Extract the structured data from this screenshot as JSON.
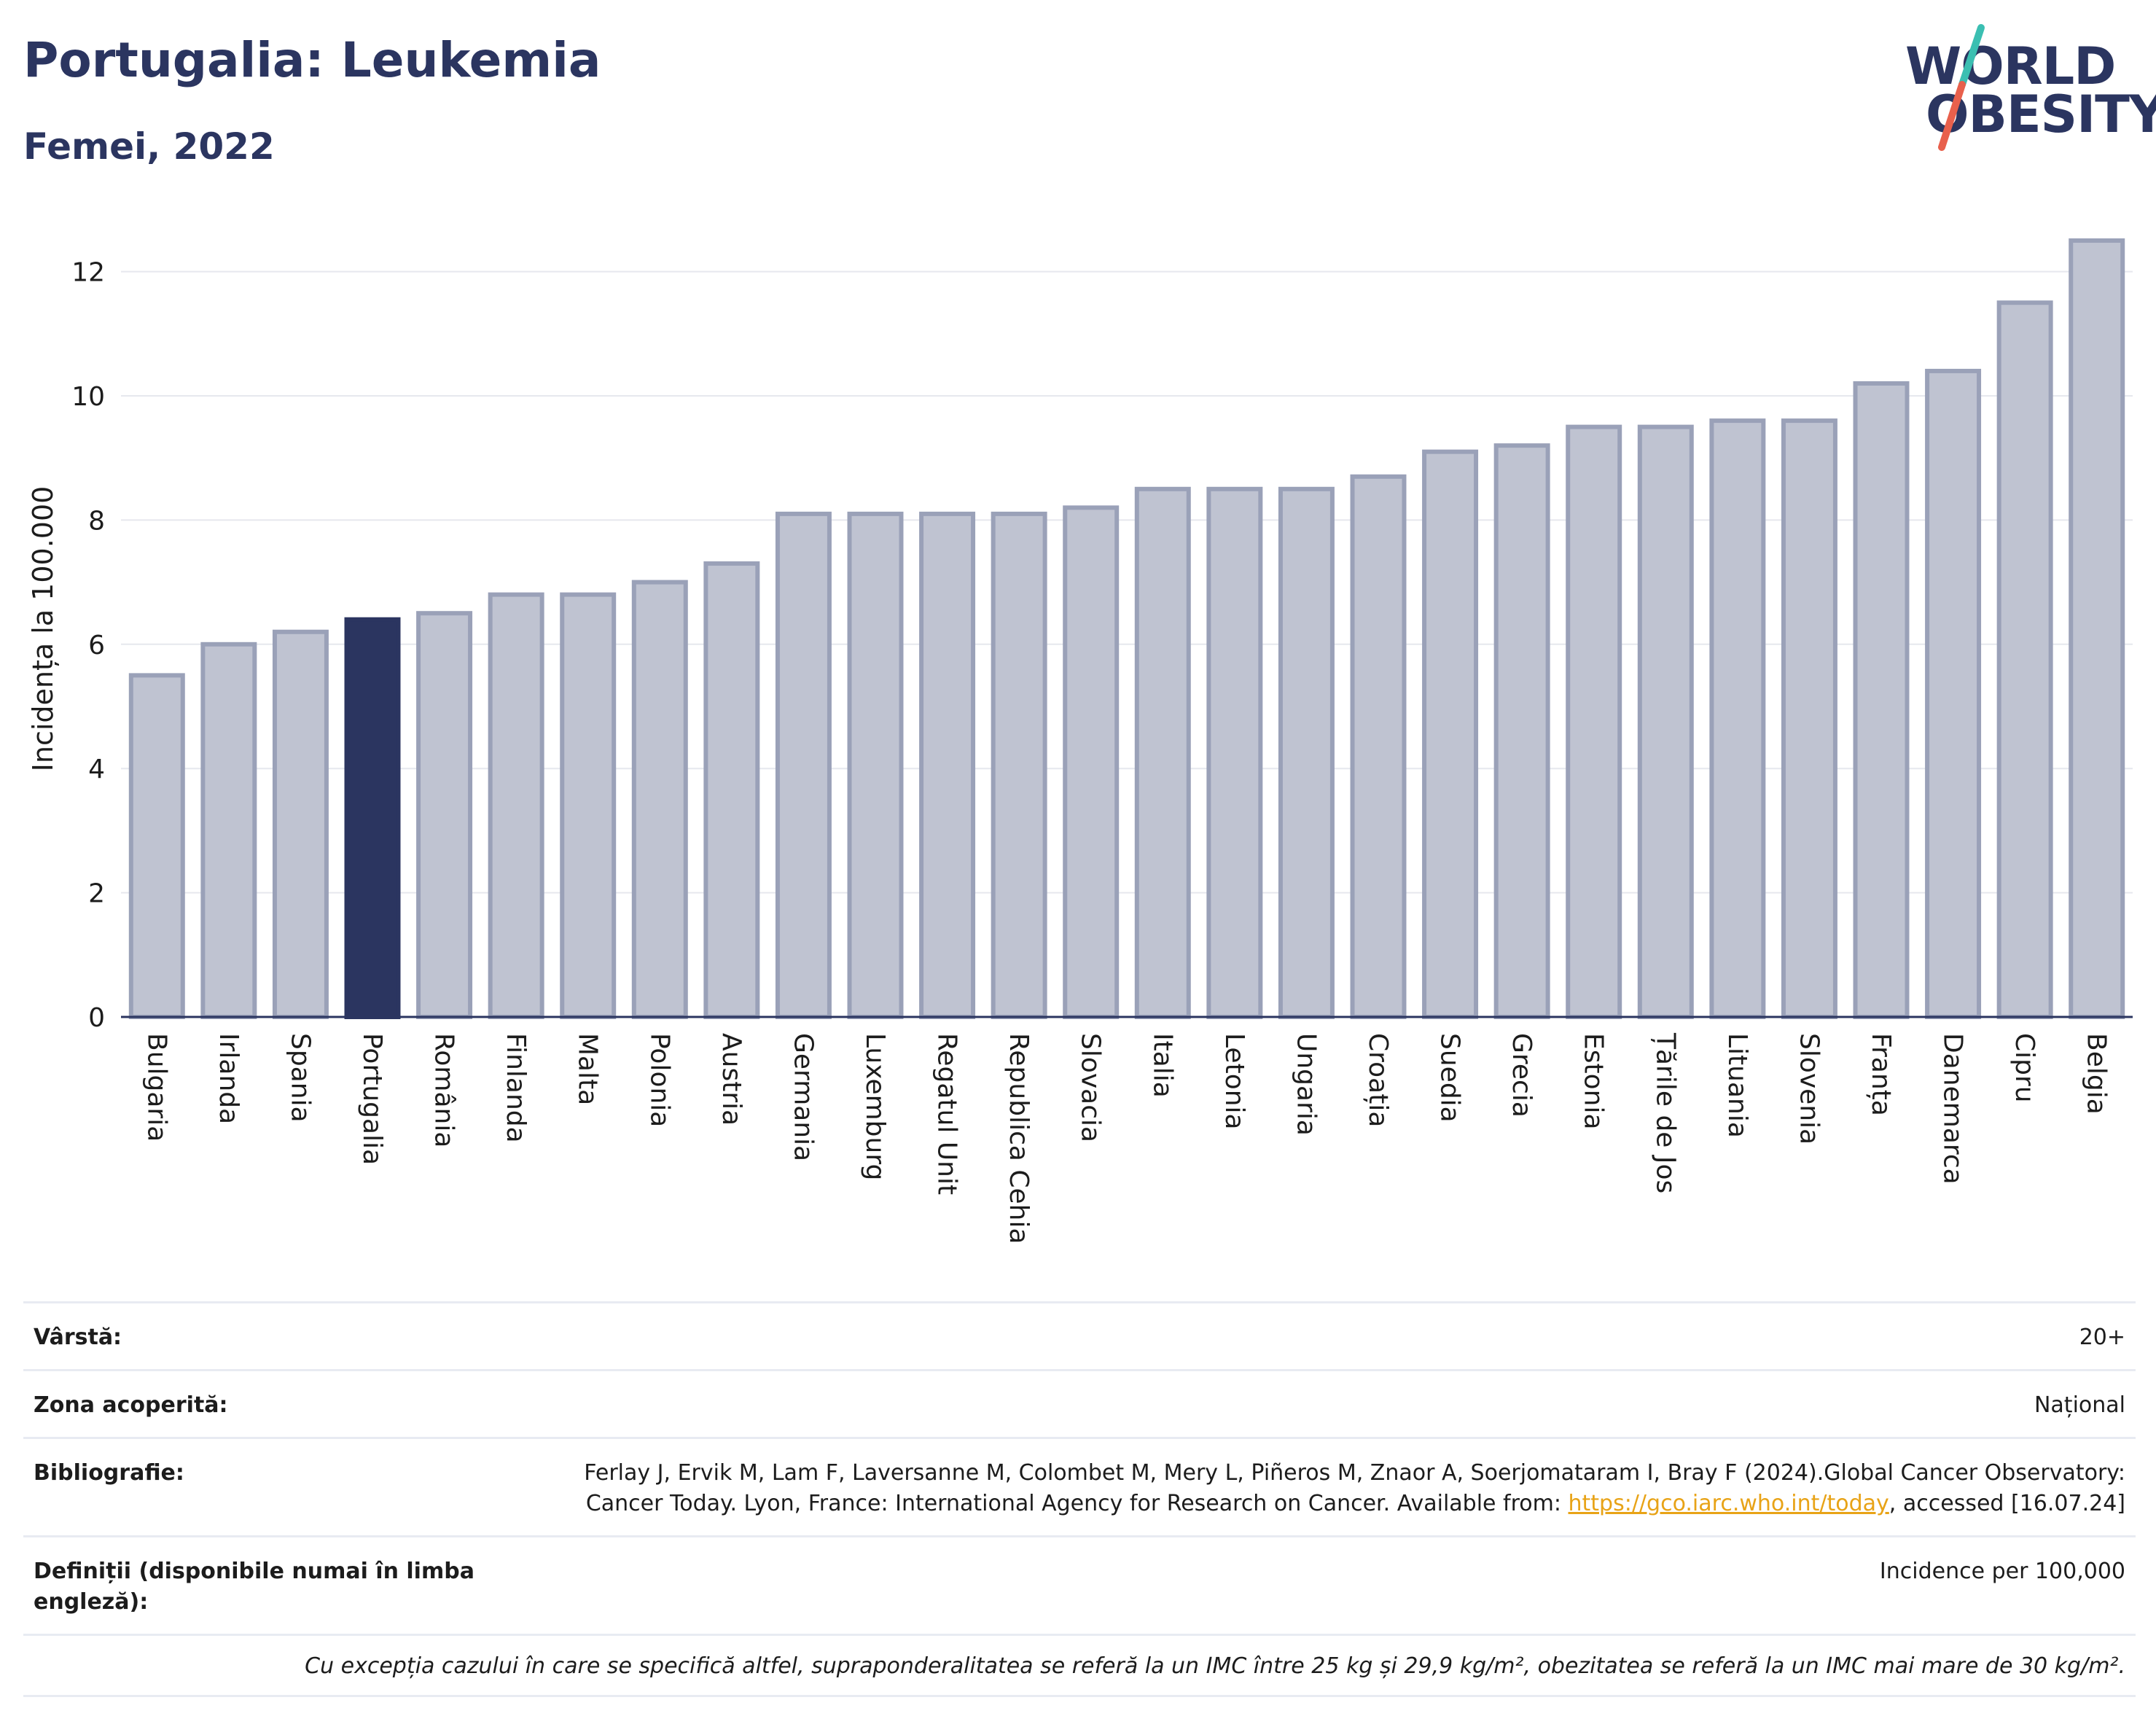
{
  "header": {
    "title": "Portugalia: Leukemia",
    "subtitle": "Femei, 2022"
  },
  "logo": {
    "line1": "WORLD",
    "line2": "OBESITY",
    "slash_colors": [
      "#3bbfb2",
      "#e8604c"
    ]
  },
  "colors": {
    "bar": "#bfc3d1",
    "bar_border": "#9aa1b8",
    "highlight": "#2b3560",
    "grid": "#e6e8ee",
    "axis": "#2b3560"
  },
  "chart_data": {
    "type": "bar",
    "ylabel": "Incidența la 100.000",
    "ylim": [
      0,
      12.5
    ],
    "yticks": [
      0,
      2,
      4,
      6,
      8,
      10,
      12
    ],
    "highlight": "Portugalia",
    "categories": [
      "Bulgaria",
      "Irlanda",
      "Spania",
      "Portugalia",
      "România",
      "Finlanda",
      "Malta",
      "Polonia",
      "Austria",
      "Germania",
      "Luxemburg",
      "Regatul Unit",
      "Republica Cehia",
      "Slovacia",
      "Italia",
      "Letonia",
      "Ungaria",
      "Croația",
      "Suedia",
      "Grecia",
      "Estonia",
      "Țările de Jos",
      "Lituania",
      "Slovenia",
      "Franța",
      "Danemarca",
      "Cipru",
      "Belgia"
    ],
    "values": [
      5.5,
      6.0,
      6.2,
      6.4,
      6.5,
      6.8,
      6.8,
      7.0,
      7.3,
      8.1,
      8.1,
      8.1,
      8.1,
      8.2,
      8.5,
      8.5,
      8.5,
      8.7,
      9.1,
      9.2,
      9.5,
      9.5,
      9.6,
      9.6,
      10.2,
      10.4,
      11.5,
      12.5
    ]
  },
  "meta": {
    "age_label": "Vârstă:",
    "age_value": "20+",
    "area_label": "Zona acoperită:",
    "area_value": "Național",
    "bib_label": "Bibliografie:",
    "bib_text": "Ferlay J, Ervik M, Lam F, Laversanne M, Colombet M, Mery L, Piñeros M, Znaor A, Soerjomataram I, Bray F (2024).Global Cancer Observatory: Cancer Today. Lyon, France: International Agency for Research on Cancer. Available from: ",
    "bib_link": "https://gco.iarc.who.int/today",
    "bib_tail": ", accessed [16.07.24]",
    "def_label": "Definiții (disponibile numai în limba engleză):",
    "def_value": "Incidence per 100,000",
    "note": "Cu excepția cazului în care se specifică altfel, supraponderalitatea se referă la un IMC între 25 kg și 29,9 kg/m², obezitatea se referă la un IMC mai mare de 30 kg/m²."
  }
}
